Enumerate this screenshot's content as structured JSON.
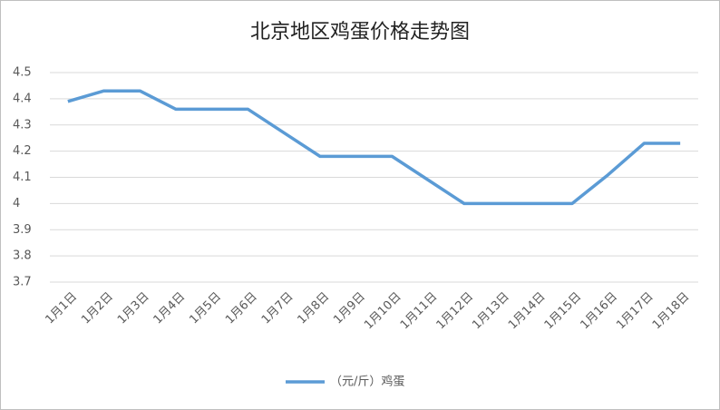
{
  "chart_data": {
    "type": "line",
    "title": "北京地区鸡蛋价格走势图",
    "categories": [
      "1月1日",
      "1月2日",
      "1月3日",
      "1月4日",
      "1月5日",
      "1月6日",
      "1月7日",
      "1月8日",
      "1月9日",
      "1月10日",
      "1月11日",
      "1月12日",
      "1月13日",
      "1月14日",
      "1月15日",
      "1月16日",
      "1月17日",
      "1月18日"
    ],
    "series": [
      {
        "name": "（元/斤）鸡蛋",
        "color": "#5b9bd5",
        "values": [
          4.39,
          4.43,
          4.43,
          4.36,
          4.36,
          4.36,
          4.27,
          4.18,
          4.18,
          4.18,
          4.09,
          4.0,
          4.0,
          4.0,
          4.0,
          4.11,
          4.23,
          4.23
        ]
      }
    ],
    "ylim": [
      3.7,
      4.5
    ],
    "yticks": [
      3.7,
      3.8,
      3.9,
      4,
      4.1,
      4.2,
      4.3,
      4.4,
      4.5
    ],
    "grid": true,
    "legend": "bottom"
  }
}
